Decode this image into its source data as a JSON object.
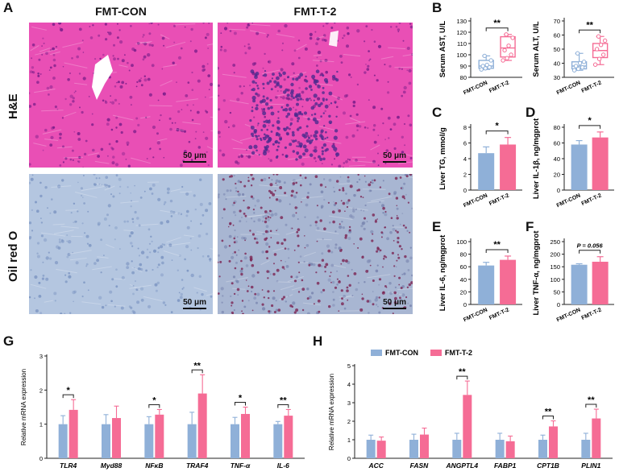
{
  "panel_a": {
    "letter": "A",
    "columns": [
      "FMT-CON",
      "FMT-T-2"
    ],
    "rows": [
      "H&E",
      "Oil red O"
    ],
    "scale_bar": "50 μm"
  },
  "panel_letters": {
    "b": "B",
    "c": "C",
    "d": "D",
    "e": "E",
    "f": "F",
    "g": "G",
    "h": "H"
  },
  "colors": {
    "con": "#8fb0d8",
    "t2": "#f56c95",
    "he_bg": "#e94fb5",
    "oil_bg": "#b4c6e0"
  },
  "chart_data": [
    {
      "id": "b1",
      "type": "box",
      "ylabel": "Serum AST, U/L",
      "ylim": [
        80,
        130
      ],
      "yticks": [
        "80",
        "90",
        "100",
        "110",
        "120",
        "130"
      ],
      "categories": [
        "FMT-CON",
        "FMT-T-2"
      ],
      "sig": "**",
      "groups": [
        {
          "min": 87,
          "q1": 88,
          "median": 90,
          "q3": 95,
          "max": 99,
          "points": [
            87,
            88,
            89,
            90,
            91,
            95,
            99
          ]
        },
        {
          "min": 95,
          "q1": 98,
          "median": 106,
          "q3": 116,
          "max": 118,
          "points": [
            95,
            97,
            100,
            104,
            108,
            115,
            118
          ]
        }
      ]
    },
    {
      "id": "b2",
      "type": "box",
      "ylabel": "Serum ALT, U/L",
      "ylim": [
        30,
        70
      ],
      "yticks": [
        "30",
        "40",
        "50",
        "60",
        "70"
      ],
      "categories": [
        "FMT-CON",
        "FMT-T-2"
      ],
      "sig": "**",
      "groups": [
        {
          "min": 35,
          "q1": 36,
          "median": 38,
          "q3": 41,
          "max": 47,
          "points": [
            35,
            36,
            37,
            38,
            40,
            41,
            47
          ]
        },
        {
          "min": 39,
          "q1": 44,
          "median": 49,
          "q3": 54,
          "max": 59,
          "points": [
            39,
            43,
            46,
            50,
            53,
            56,
            59
          ]
        }
      ]
    },
    {
      "id": "c",
      "type": "bar",
      "ylabel": "Liver TG, mmol/g",
      "ylim": [
        0,
        8
      ],
      "yticks": [
        "0",
        "2",
        "4",
        "6",
        "8"
      ],
      "categories": [
        "FMT-CON",
        "FMT-T-2"
      ],
      "values": [
        4.7,
        5.8
      ],
      "errors": [
        0.8,
        0.9
      ],
      "sig": "*"
    },
    {
      "id": "d",
      "type": "bar",
      "ylabel": "Liver IL-1β, ng/mgprot",
      "ylim": [
        0,
        80
      ],
      "yticks": [
        "0",
        "20",
        "40",
        "60",
        "80"
      ],
      "categories": [
        "FMT-CON",
        "FMT-T-2"
      ],
      "values": [
        58,
        67
      ],
      "errors": [
        5,
        7
      ],
      "sig": "*"
    },
    {
      "id": "e",
      "type": "bar",
      "ylabel": "Liver IL-6, ng/mgprot",
      "ylim": [
        0,
        100
      ],
      "yticks": [
        "0",
        "20",
        "40",
        "60",
        "80",
        "100"
      ],
      "categories": [
        "FMT-CON",
        "FMT-T-2"
      ],
      "values": [
        62,
        71
      ],
      "errors": [
        5,
        6
      ],
      "sig": "**"
    },
    {
      "id": "f",
      "type": "bar",
      "ylabel": "Liver TNF-α, ng/mgprot",
      "ylim": [
        0,
        250
      ],
      "yticks": [
        "0",
        "50",
        "100",
        "150",
        "200",
        "250"
      ],
      "categories": [
        "FMT-CON",
        "FMT-T-2"
      ],
      "values": [
        158,
        170
      ],
      "errors": [
        4,
        20
      ],
      "sig": "P = 0.056"
    },
    {
      "id": "g",
      "type": "bar",
      "ylabel": "Relative mRNA expression",
      "ylim": [
        0,
        3
      ],
      "yticks": [
        "0",
        "1",
        "2",
        "3"
      ],
      "categories": [
        "TLR4",
        "Myd88",
        "NFκB",
        "TRAF4",
        "TNF-α",
        "IL-6"
      ],
      "series": [
        {
          "values": [
            1.0,
            1.0,
            1.0,
            1.0,
            1.0,
            1.0
          ],
          "errors": [
            0.25,
            0.28,
            0.22,
            0.35,
            0.2,
            0.08
          ]
        },
        {
          "values": [
            1.42,
            1.18,
            1.28,
            1.9,
            1.3,
            1.25
          ],
          "errors": [
            0.3,
            0.35,
            0.15,
            0.55,
            0.2,
            0.18
          ]
        }
      ],
      "sig": [
        "*",
        "",
        "*",
        "**",
        "*",
        "**"
      ]
    },
    {
      "id": "h",
      "type": "bar",
      "ylabel": "Relative mRNA expression",
      "ylim": [
        0,
        5
      ],
      "yticks": [
        "0",
        "1",
        "2",
        "3",
        "4",
        "5"
      ],
      "categories": [
        "ACC",
        "FASN",
        "ANGPTL4",
        "FABP1",
        "CPT1B",
        "PLIN1"
      ],
      "series": [
        {
          "name": "FMT-CON",
          "values": [
            1.0,
            1.0,
            1.0,
            1.0,
            1.0,
            1.0
          ],
          "errors": [
            0.25,
            0.3,
            0.35,
            0.35,
            0.25,
            0.35
          ]
        },
        {
          "name": "FMT-T-2",
          "values": [
            0.95,
            1.28,
            3.42,
            0.92,
            1.72,
            2.15
          ],
          "errors": [
            0.2,
            0.35,
            0.75,
            0.28,
            0.3,
            0.5
          ]
        }
      ],
      "sig": [
        "",
        "",
        "**",
        "",
        "**",
        "**"
      ]
    }
  ]
}
